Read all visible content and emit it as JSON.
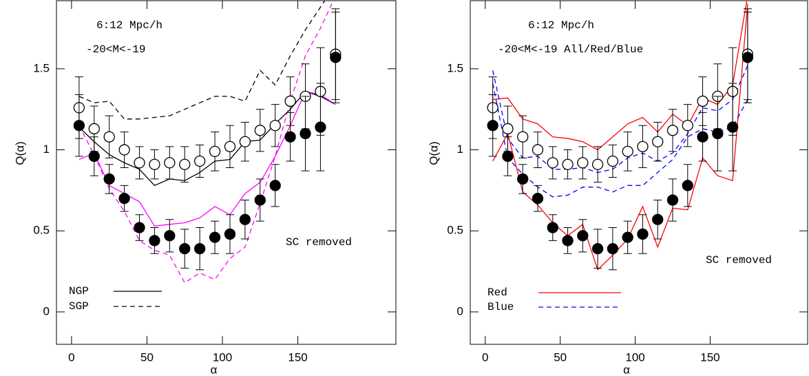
{
  "chart_data": [
    {
      "type": "errorbar-line",
      "xlabel": "α",
      "ylabel": "Q(α)",
      "xlim": [
        -10,
        215
      ],
      "ylim": [
        -0.2,
        1.92
      ],
      "xticks": [
        0,
        50,
        100,
        150
      ],
      "yticks": [
        0,
        0.5,
        1,
        1.5
      ],
      "annotations": [
        {
          "text": "6:12 Mpc/h"
        },
        {
          "text": "-20<M<-19"
        },
        {
          "text": "SC removed",
          "color": "#ff00ff"
        }
      ],
      "x": [
        5,
        15,
        25,
        35,
        45,
        55,
        65,
        75,
        85,
        95,
        105,
        115,
        125,
        135,
        145,
        155,
        165,
        175
      ],
      "series": [
        {
          "name": "NGP",
          "color": "#000000",
          "style": "solid",
          "values": [
            1.14,
            1.05,
            0.97,
            0.92,
            0.88,
            0.78,
            0.82,
            0.81,
            0.86,
            0.93,
            0.94,
            1.05,
            1.06,
            1.16,
            1.25,
            1.36,
            1.33,
            1.28
          ]
        },
        {
          "name": "SGP",
          "color": "#000000",
          "style": "dashed",
          "values": [
            1.33,
            1.29,
            1.3,
            1.19,
            1.19,
            1.2,
            1.21,
            1.25,
            1.29,
            1.33,
            1.33,
            1.3,
            1.49,
            1.4,
            1.58,
            1.74,
            1.88,
            2.02
          ]
        },
        {
          "color": "#ff00ff",
          "style": "solid",
          "values": [
            0.94,
            0.98,
            0.78,
            0.73,
            0.68,
            0.53,
            0.54,
            0.55,
            0.58,
            0.65,
            0.6,
            0.73,
            0.8,
            0.96,
            1.15,
            1.36,
            1.34,
            1.28
          ]
        },
        {
          "color": "#ff00ff",
          "style": "dashed",
          "values": [
            1.15,
            0.97,
            0.76,
            0.62,
            0.44,
            0.38,
            0.35,
            0.18,
            0.24,
            0.2,
            0.33,
            0.4,
            0.67,
            0.96,
            1.3,
            1.58,
            1.75,
            1.95
          ]
        },
        {
          "color": "#000000",
          "style": "open",
          "values": [
            1.26,
            1.13,
            1.08,
            1.0,
            0.92,
            0.91,
            0.92,
            0.91,
            0.93,
            0.99,
            1.02,
            1.05,
            1.12,
            1.15,
            1.3,
            1.33,
            1.36,
            1.59
          ],
          "errors": [
            0.19,
            0.14,
            0.13,
            0.11,
            0.1,
            0.09,
            0.1,
            0.11,
            0.1,
            0.12,
            0.13,
            0.12,
            0.13,
            0.13,
            0.15,
            0.2,
            0.27,
            0.28
          ]
        },
        {
          "color": "#000000",
          "style": "filled",
          "values": [
            1.15,
            0.96,
            0.82,
            0.7,
            0.52,
            0.44,
            0.47,
            0.39,
            0.39,
            0.46,
            0.48,
            0.57,
            0.69,
            0.78,
            1.08,
            1.1,
            1.14,
            1.57
          ],
          "errors": [
            0.19,
            0.12,
            0.09,
            0.08,
            0.08,
            0.08,
            0.1,
            0.12,
            0.13,
            0.1,
            0.12,
            0.12,
            0.13,
            0.13,
            0.15,
            0.23,
            0.27,
            0.28
          ]
        }
      ]
    },
    {
      "type": "errorbar-line",
      "xlabel": "α",
      "ylabel": "Q(α)",
      "xlim": [
        -10,
        215
      ],
      "ylim": [
        -0.2,
        1.92
      ],
      "xticks": [
        0,
        50,
        100,
        150
      ],
      "yticks": [
        0,
        0.5,
        1,
        1.5
      ],
      "annotations": [
        {
          "text": "6:12 Mpc/h"
        },
        {
          "text": "-20<M<-19  All/Red/Blue"
        },
        {
          "text": "SC removed",
          "color": "#000000"
        }
      ],
      "x": [
        5,
        15,
        25,
        35,
        45,
        55,
        65,
        75,
        85,
        95,
        105,
        115,
        125,
        135,
        145,
        155,
        165,
        175
      ],
      "series": [
        {
          "name": "Red",
          "color": "#ff0000",
          "style": "solid",
          "values": [
            1.31,
            1.32,
            1.19,
            1.16,
            1.08,
            1.07,
            1.05,
            1.0,
            1.08,
            1.16,
            1.2,
            1.11,
            1.22,
            1.15,
            1.32,
            1.28,
            1.4,
            1.95
          ]
        },
        {
          "name": "Blue",
          "color": "#0000ff",
          "style": "dashed",
          "values": [
            1.49,
            1.07,
            0.95,
            0.96,
            0.88,
            0.88,
            0.89,
            0.86,
            0.88,
            0.95,
            0.98,
            0.93,
            0.98,
            1.1,
            1.26,
            1.24,
            1.31,
            1.52
          ]
        },
        {
          "color": "#ff0000",
          "style": "solid",
          "values": [
            0.93,
            1.1,
            0.74,
            0.66,
            0.55,
            0.47,
            0.54,
            0.26,
            0.35,
            0.45,
            0.65,
            0.4,
            0.64,
            0.63,
            0.95,
            0.84,
            0.81,
            1.9
          ]
        },
        {
          "color": "#0000ff",
          "style": "dashed",
          "values": [
            1.41,
            0.95,
            0.85,
            0.77,
            0.71,
            0.72,
            0.77,
            0.77,
            0.74,
            0.78,
            0.78,
            0.86,
            0.94,
            1.08,
            1.13,
            1.11,
            1.14,
            1.31
          ]
        },
        {
          "color": "#000000",
          "style": "open",
          "values": [
            1.26,
            1.13,
            1.08,
            1.0,
            0.92,
            0.91,
            0.92,
            0.91,
            0.93,
            0.99,
            1.02,
            1.05,
            1.12,
            1.15,
            1.3,
            1.33,
            1.36,
            1.59
          ],
          "errors": [
            0.19,
            0.14,
            0.13,
            0.11,
            0.1,
            0.09,
            0.1,
            0.11,
            0.1,
            0.12,
            0.13,
            0.12,
            0.13,
            0.13,
            0.15,
            0.2,
            0.27,
            0.28
          ]
        },
        {
          "color": "#000000",
          "style": "filled",
          "values": [
            1.15,
            0.96,
            0.82,
            0.7,
            0.52,
            0.44,
            0.47,
            0.39,
            0.39,
            0.46,
            0.48,
            0.57,
            0.69,
            0.78,
            1.08,
            1.1,
            1.14,
            1.57
          ],
          "errors": [
            0.19,
            0.12,
            0.09,
            0.08,
            0.08,
            0.08,
            0.1,
            0.12,
            0.13,
            0.1,
            0.12,
            0.12,
            0.13,
            0.13,
            0.15,
            0.23,
            0.27,
            0.28
          ]
        }
      ]
    }
  ]
}
